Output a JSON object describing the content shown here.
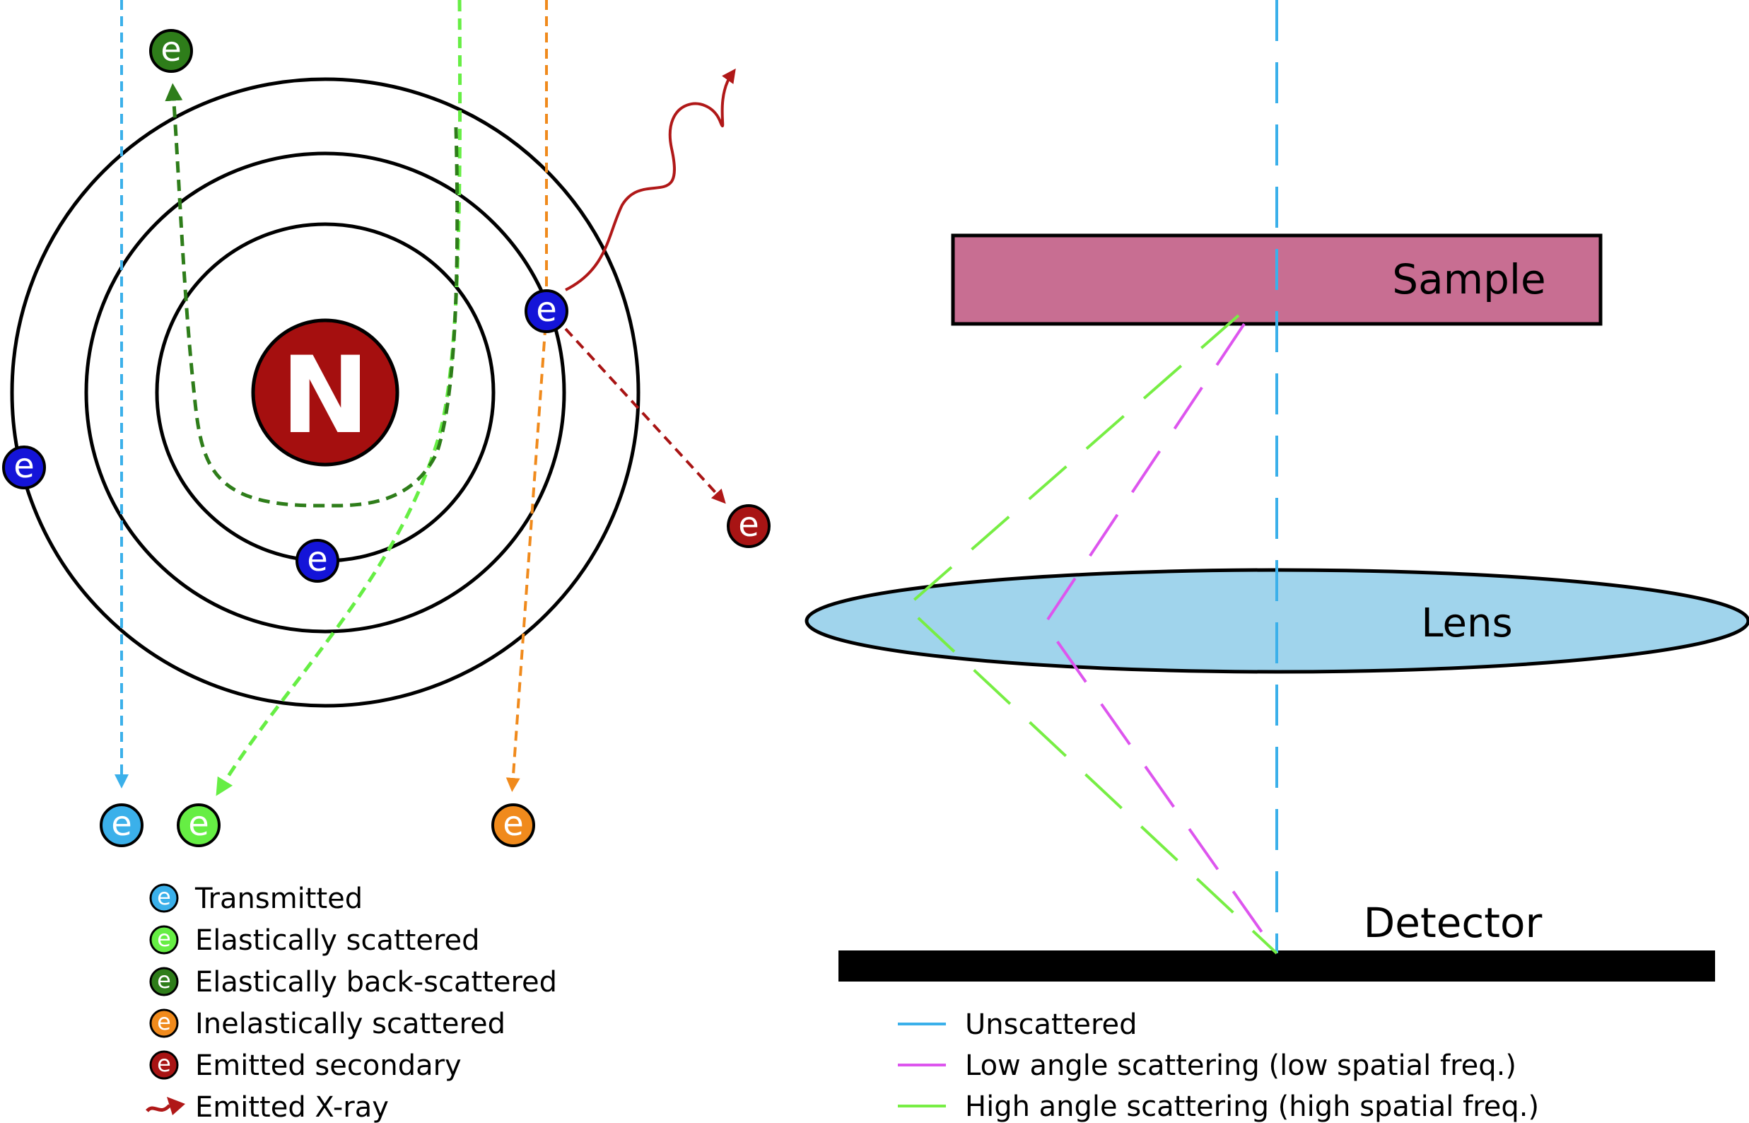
{
  "colors": {
    "transmitted": "#3bb0ea",
    "elastic": "#66ee44",
    "backscatter": "#2e7d1a",
    "inelastic": "#f08a1c",
    "secondary": "#a81414",
    "xray": "#b01818",
    "orbital": "#1414d8",
    "nucleus": "#a50f0f",
    "sample": "#c86e92",
    "lens": "#a0d4ec",
    "low_angle": "#dd55ee",
    "high_angle": "#77ee44",
    "unscattered": "#3bb0ea"
  },
  "electron_letter": "e",
  "nucleus_label": "N",
  "atom_legend": [
    {
      "label": "Transmitted",
      "color": "transmitted",
      "kind": "electron"
    },
    {
      "label": "Elastically scattered",
      "color": "elastic",
      "kind": "electron"
    },
    {
      "label": "Elastically back-scattered",
      "color": "backscatter",
      "kind": "electron"
    },
    {
      "label": "Inelastically scattered",
      "color": "inelastic",
      "kind": "electron"
    },
    {
      "label": "Emitted secondary",
      "color": "secondary",
      "kind": "electron"
    },
    {
      "label": "Emitted X-ray",
      "color": "xray",
      "kind": "arrow"
    }
  ],
  "tem": {
    "sample_label": "Sample",
    "lens_label": "Lens",
    "detector_label": "Detector"
  },
  "tem_legend": [
    {
      "label": "Unscattered",
      "color": "unscattered"
    },
    {
      "label": "Low angle scattering (low spatial freq.)",
      "color": "low_angle"
    },
    {
      "label": "High angle scattering (high spatial freq.)",
      "color": "high_angle"
    }
  ]
}
